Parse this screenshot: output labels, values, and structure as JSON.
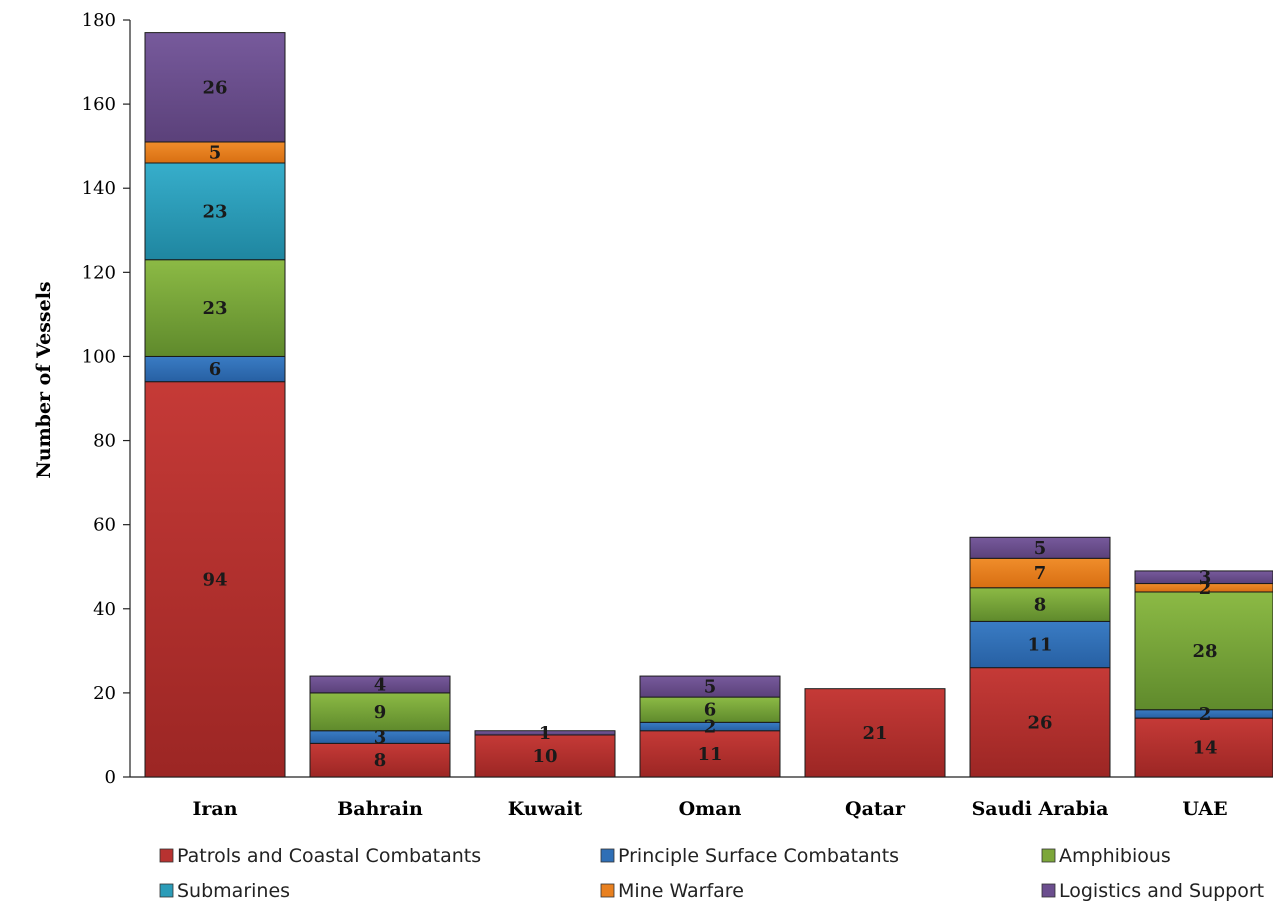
{
  "chart_data": {
    "type": "bar",
    "stacked": true,
    "ylabel": "Number of Vessels",
    "ylim": [
      0,
      180
    ],
    "yticks": [
      0,
      20,
      40,
      60,
      80,
      100,
      120,
      140,
      160,
      180
    ],
    "grid": false,
    "legend_position": "bottom",
    "categories": [
      "Iran",
      "Bahrain",
      "Kuwait",
      "Oman",
      "Qatar",
      "Saudi Arabia",
      "UAE"
    ],
    "series": [
      {
        "name": "Patrols and Coastal Combatants",
        "color": "#b83230",
        "values": [
          94,
          8,
          10,
          11,
          21,
          26,
          14
        ]
      },
      {
        "name": "Principle Surface Combatants",
        "color": "#2f6fb6",
        "values": [
          6,
          3,
          0,
          2,
          0,
          11,
          2
        ]
      },
      {
        "name": "Amphibious",
        "color": "#7ca63a",
        "values": [
          23,
          9,
          0,
          6,
          0,
          8,
          28
        ]
      },
      {
        "name": "Submarines",
        "color": "#2b9cb8",
        "values": [
          23,
          0,
          0,
          0,
          0,
          0,
          0
        ]
      },
      {
        "name": "Mine Warfare",
        "color": "#e8801f",
        "values": [
          5,
          0,
          0,
          0,
          0,
          7,
          2
        ]
      },
      {
        "name": "Logistics and Support",
        "color": "#6b4e8e",
        "values": [
          26,
          4,
          1,
          5,
          0,
          5,
          3
        ]
      }
    ]
  }
}
